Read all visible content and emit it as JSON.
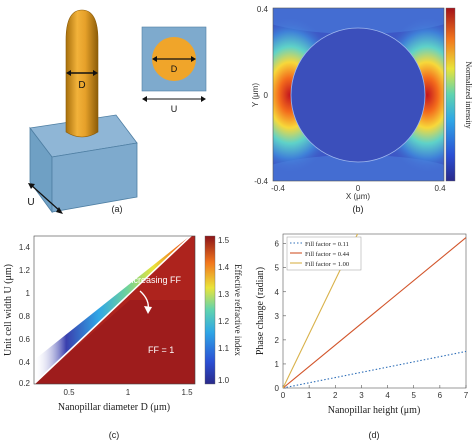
{
  "panel_a": {
    "caption": "(a)",
    "diameter_label": "D",
    "inset_diameter_label": "D",
    "inset_width_label": "U",
    "cell_width_label": "U"
  },
  "panel_b": {
    "caption": "(b)",
    "xlabel": "X (μm)",
    "ylabel": "Y (μm)",
    "colorbar_label": "Normalized intensity",
    "x_ticks": [
      "-0.4",
      "0",
      "0.4"
    ],
    "y_ticks": [
      "0.4",
      "0",
      "-0.4"
    ]
  },
  "panel_c": {
    "caption": "(c)",
    "xlabel": "Nanopillar diameter D (μm)",
    "ylabel": "Unit cell width U (μm)",
    "colorbar_label": "Effective refractive index",
    "x_ticks": [
      "0.5",
      "1",
      "1.5"
    ],
    "y_ticks": [
      "1.4",
      "1.2",
      "1",
      "0.8",
      "0.6",
      "0.4",
      "0.2"
    ],
    "colorbar_ticks": [
      "1.5",
      "1.4",
      "1.3",
      "1.2",
      "1.1",
      "1.0"
    ],
    "annotation_arrow": "Increasing FF",
    "annotation_region": "FF = 1"
  },
  "panel_d": {
    "caption": "(d)"
  },
  "chart_data": [
    {
      "type": "line",
      "xlabel": "Nanopillar height (μm)",
      "ylabel": "Phase change (radian)",
      "xlim": [
        0,
        7
      ],
      "ylim": [
        0,
        6.4
      ],
      "x_ticks": [
        "0",
        "1",
        "2",
        "3",
        "4",
        "5",
        "6",
        "7"
      ],
      "y_ticks": [
        "0",
        "1",
        "2",
        "3",
        "4",
        "5",
        "6"
      ],
      "legend_position": "top-left",
      "series": [
        {
          "name": "Fill factor = 0.11",
          "color": "#2f6fb8",
          "dash": "dotted",
          "x": [
            0,
            7
          ],
          "y": [
            0,
            1.52
          ]
        },
        {
          "name": "Fill factor = 0.44",
          "color": "#d2552b",
          "dash": "solid",
          "x": [
            0,
            7
          ],
          "y": [
            0,
            6.25
          ]
        },
        {
          "name": "Fill factor = 1.00",
          "color": "#d9b24a",
          "dash": "solid",
          "x": [
            0,
            2.85
          ],
          "y": [
            0,
            6.4
          ]
        }
      ]
    },
    {
      "type": "heatmap",
      "xlabel": "Nanopillar diameter D (μm)",
      "ylabel": "Unit cell width U (μm)",
      "xlim": [
        0.2,
        1.55
      ],
      "ylim": [
        0.2,
        1.5
      ],
      "colorbar_range": [
        1.0,
        1.55
      ],
      "boundary_line": {
        "x": [
          0.2,
          1.55
        ],
        "y": [
          0.2,
          1.55
        ]
      }
    }
  ]
}
